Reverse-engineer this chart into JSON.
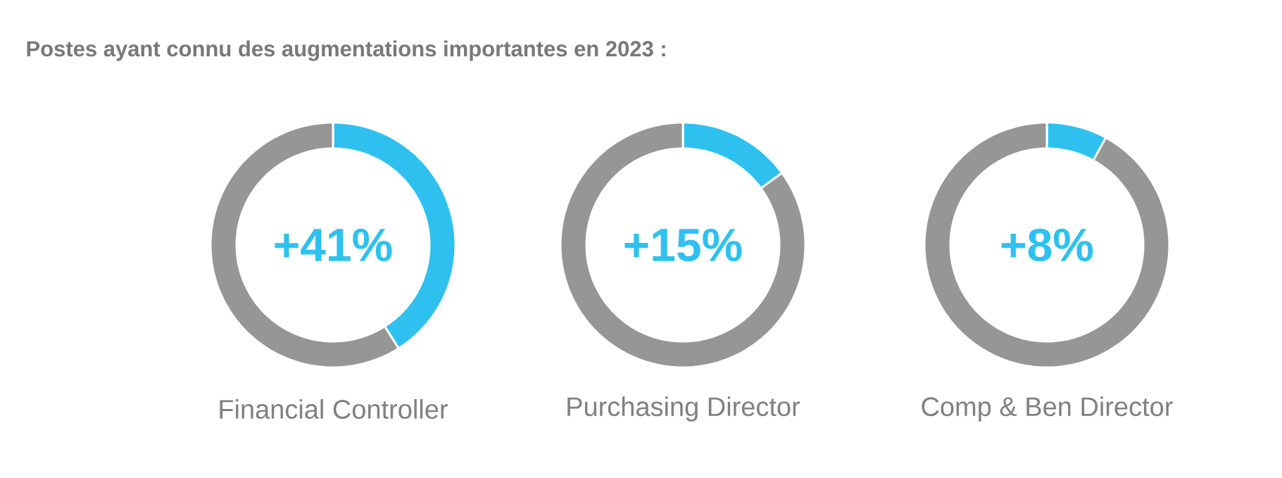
{
  "chart_data": [
    {
      "type": "donut",
      "title": "Postes ayant connu  des augmentations importantes en  2023 :",
      "xlabel": "Financial Controller",
      "categories": [
        null,
        null
      ],
      "values": [
        41,
        59
      ],
      "colors": [
        "#2ec1f0",
        "#969696"
      ],
      "annotations": [
        "+41%"
      ]
    },
    {
      "type": "donut",
      "xlabel": "Purchasing Director",
      "categories": [
        null,
        null
      ],
      "values": [
        15,
        85
      ],
      "colors": [
        "#2ec1f0",
        "#969696"
      ],
      "annotations": [
        "+15%"
      ]
    },
    {
      "type": "donut",
      "xlabel": "Comp & Ben Director",
      "categories": [
        null,
        null
      ],
      "values": [
        8,
        92
      ],
      "colors": [
        "#2ec1f0",
        "#969696"
      ],
      "annotations": [
        "+8%"
      ]
    }
  ]
}
